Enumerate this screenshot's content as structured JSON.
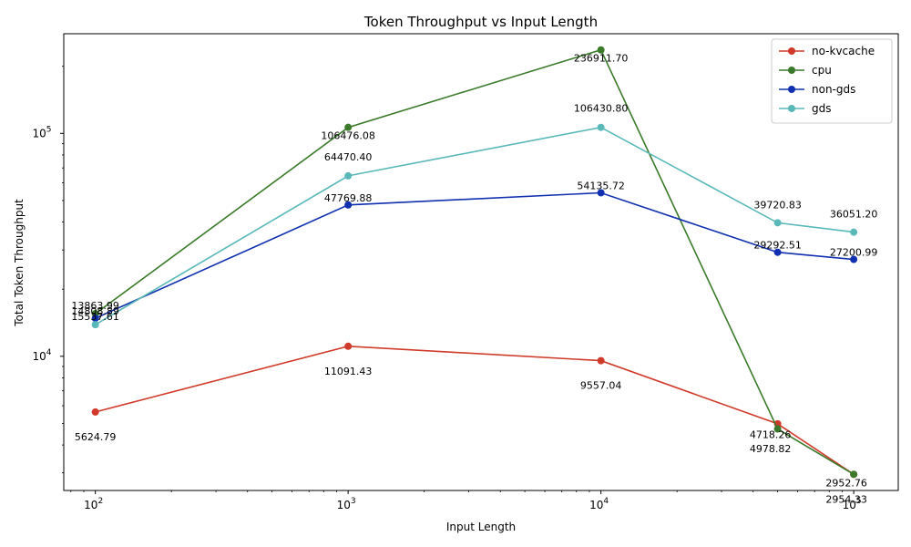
{
  "chart_data": {
    "type": "line",
    "title": "Token Throughput vs Input Length",
    "xlabel": "Input Length",
    "ylabel": "Total Token Throughput",
    "xscale": "log",
    "yscale": "log",
    "xlim": [
      75,
      150000
    ],
    "ylim": [
      2500,
      280000
    ],
    "legend_position": "top-right",
    "x": [
      100,
      1000,
      10000,
      50000,
      100000
    ],
    "x_ticks": [
      {
        "value": 100,
        "base": "10",
        "exp": "2"
      },
      {
        "value": 1000,
        "base": "10",
        "exp": "3"
      },
      {
        "value": 10000,
        "base": "10",
        "exp": "4"
      },
      {
        "value": 100000,
        "base": "10",
        "exp": "5"
      }
    ],
    "y_ticks": [
      {
        "value": 10000,
        "base": "10",
        "exp": "4"
      },
      {
        "value": 100000,
        "base": "10",
        "exp": "5"
      }
    ],
    "series": [
      {
        "name": "no-kvcache",
        "color": "#d03a2a",
        "values": [
          5624.79,
          11091.43,
          9557.04,
          4978.82,
          2952.76
        ],
        "labels": [
          "5624.79",
          "11091.43",
          "9557.04",
          "4978.82",
          "2952.76"
        ]
      },
      {
        "name": "cpu",
        "color": "#3a7a2a",
        "values": [
          15537.61,
          106476.08,
          236911.7,
          4718.26,
          2954.33
        ],
        "labels": [
          "15537.61",
          "106476.08",
          "236911.70",
          "4718.26",
          "2954.33"
        ]
      },
      {
        "name": "non-gds",
        "color": "#1030b0",
        "values": [
          14808.89,
          47769.88,
          54135.72,
          29292.51,
          27200.99
        ],
        "labels": [
          "14808.89",
          "47769.88",
          "54135.72",
          "29292.51",
          "27200.99"
        ]
      },
      {
        "name": "gds",
        "color": "#5ab8b8",
        "values": [
          13863.99,
          64470.4,
          106430.8,
          39720.83,
          36051.2
        ],
        "labels": [
          "13863.99",
          "64470.40",
          "106430.80",
          "39720.83",
          "36051.20"
        ]
      }
    ]
  }
}
